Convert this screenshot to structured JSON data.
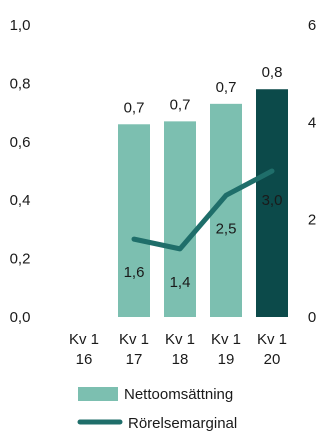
{
  "chart_data": {
    "type": "bar",
    "categories": [
      "Kv 1\n16",
      "Kv 1\n17",
      "Kv 1\n18",
      "Kv 1\n19",
      "Kv 1\n20"
    ],
    "series": [
      {
        "name": "Nettoomsättning",
        "type": "bar",
        "axis": "left",
        "values": [
          null,
          0.66,
          0.67,
          0.73,
          0.78
        ],
        "value_labels": [
          "",
          "0,7",
          "0,7",
          "0,7",
          "0,8"
        ],
        "colors": [
          "#7cbfb0",
          "#7cbfb0",
          "#7cbfb0",
          "#7cbfb0",
          "#0c4a4a"
        ]
      },
      {
        "name": "Rörelsemarginal",
        "type": "line",
        "axis": "right",
        "values": [
          null,
          1.6,
          1.4,
          2.5,
          3.0
        ],
        "value_labels": [
          "",
          "1,6",
          "1,4",
          "2,5",
          "3,0"
        ],
        "color": "#1f6e6a"
      }
    ],
    "y_left": {
      "ticks": [
        "0,0",
        "0,2",
        "0,4",
        "0,6",
        "0,8",
        "1,0"
      ],
      "ylim": [
        0,
        1.0
      ]
    },
    "y_right": {
      "ticks": [
        "0",
        "2",
        "4",
        "6"
      ],
      "ylim": [
        0,
        6
      ]
    },
    "legend": "bottom",
    "grid": false
  }
}
